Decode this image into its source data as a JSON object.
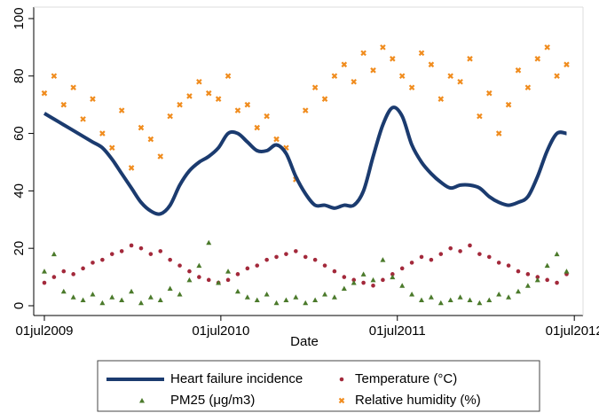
{
  "chart_data": {
    "type": "scatter",
    "xlabel": "Date",
    "legend": "bottom",
    "xlim": [
      "2009-06-09",
      "2012-07-19"
    ],
    "ylim": [
      -3.4,
      104
    ],
    "xticks": [
      {
        "value": "2009-07-01",
        "label": "01jul2009"
      },
      {
        "value": "2010-07-01",
        "label": "01jul2010"
      },
      {
        "value": "2011-07-01",
        "label": "01jul2011"
      },
      {
        "value": "2012-07-01",
        "label": "01jul2012"
      }
    ],
    "yticks": [
      0,
      20,
      40,
      60,
      80,
      100
    ],
    "x": [
      "2009-07-01",
      "2009-07-21",
      "2009-08-10",
      "2009-08-30",
      "2009-09-19",
      "2009-10-09",
      "2009-10-29",
      "2009-11-18",
      "2009-12-08",
      "2009-12-28",
      "2010-01-17",
      "2010-02-06",
      "2010-02-26",
      "2010-03-18",
      "2010-04-07",
      "2010-04-27",
      "2010-05-17",
      "2010-06-06",
      "2010-06-26",
      "2010-07-16",
      "2010-08-05",
      "2010-08-25",
      "2010-09-14",
      "2010-10-04",
      "2010-10-24",
      "2010-11-13",
      "2010-12-03",
      "2010-12-23",
      "2011-01-12",
      "2011-02-01",
      "2011-02-21",
      "2011-03-13",
      "2011-04-02",
      "2011-04-22",
      "2011-05-12",
      "2011-06-01",
      "2011-06-21",
      "2011-07-11",
      "2011-07-31",
      "2011-08-20",
      "2011-09-09",
      "2011-09-29",
      "2011-10-19",
      "2011-11-08",
      "2011-11-28",
      "2011-12-18",
      "2012-01-07",
      "2012-01-27",
      "2012-02-16",
      "2012-03-07",
      "2012-03-27",
      "2012-04-16",
      "2012-05-06",
      "2012-05-26",
      "2012-06-15"
    ],
    "series": [
      {
        "name": "Heart failure incidence",
        "kind": "line",
        "color": "#1b3b6f",
        "values": [
          67,
          65,
          63,
          61,
          59,
          57,
          55,
          51,
          46,
          41,
          36,
          33,
          32,
          35,
          42,
          47,
          50,
          52,
          55,
          60,
          60,
          57,
          54,
          54,
          56,
          53,
          45,
          39,
          35,
          35,
          34,
          35,
          35,
          40,
          52,
          63,
          69,
          66,
          56,
          50,
          46,
          43,
          41,
          42,
          42,
          41,
          38,
          36,
          35,
          36,
          38,
          45,
          54,
          60,
          60
        ]
      },
      {
        "name": "Temperature (°C)",
        "kind": "circle",
        "color": "#a3293b",
        "values": [
          8,
          10,
          12,
          11,
          13,
          15,
          16,
          18,
          19,
          21,
          20,
          18,
          19,
          16,
          14,
          12,
          10,
          9,
          8,
          9,
          11,
          13,
          14,
          16,
          17,
          18,
          19,
          17,
          16,
          14,
          12,
          10,
          9,
          8,
          7,
          9,
          11,
          13,
          15,
          17,
          16,
          18,
          20,
          19,
          21,
          18,
          17,
          15,
          14,
          12,
          11,
          10,
          9,
          8,
          11
        ]
      },
      {
        "name": "PM25 (μg/m3)",
        "kind": "triangle",
        "color": "#4b7a2b",
        "values": [
          12,
          18,
          5,
          3,
          2,
          4,
          1,
          3,
          2,
          5,
          1,
          3,
          2,
          6,
          4,
          9,
          14,
          22,
          8,
          12,
          5,
          3,
          2,
          4,
          1,
          2,
          3,
          1,
          2,
          4,
          3,
          6,
          8,
          11,
          9,
          16,
          10,
          7,
          4,
          2,
          3,
          1,
          2,
          3,
          2,
          1,
          2,
          4,
          3,
          5,
          7,
          9,
          14,
          18,
          12
        ]
      },
      {
        "name": "Relative humidity (%)",
        "kind": "cross",
        "color": "#f08c1e",
        "values": [
          74,
          80,
          70,
          76,
          65,
          72,
          60,
          55,
          68,
          48,
          62,
          58,
          52,
          66,
          70,
          73,
          78,
          74,
          72,
          80,
          68,
          70,
          62,
          66,
          58,
          55,
          44,
          68,
          76,
          72,
          80,
          84,
          78,
          88,
          82,
          90,
          86,
          80,
          76,
          88,
          84,
          72,
          80,
          78,
          86,
          66,
          74,
          60,
          70,
          82,
          76,
          86,
          90,
          80,
          84
        ]
      }
    ]
  }
}
